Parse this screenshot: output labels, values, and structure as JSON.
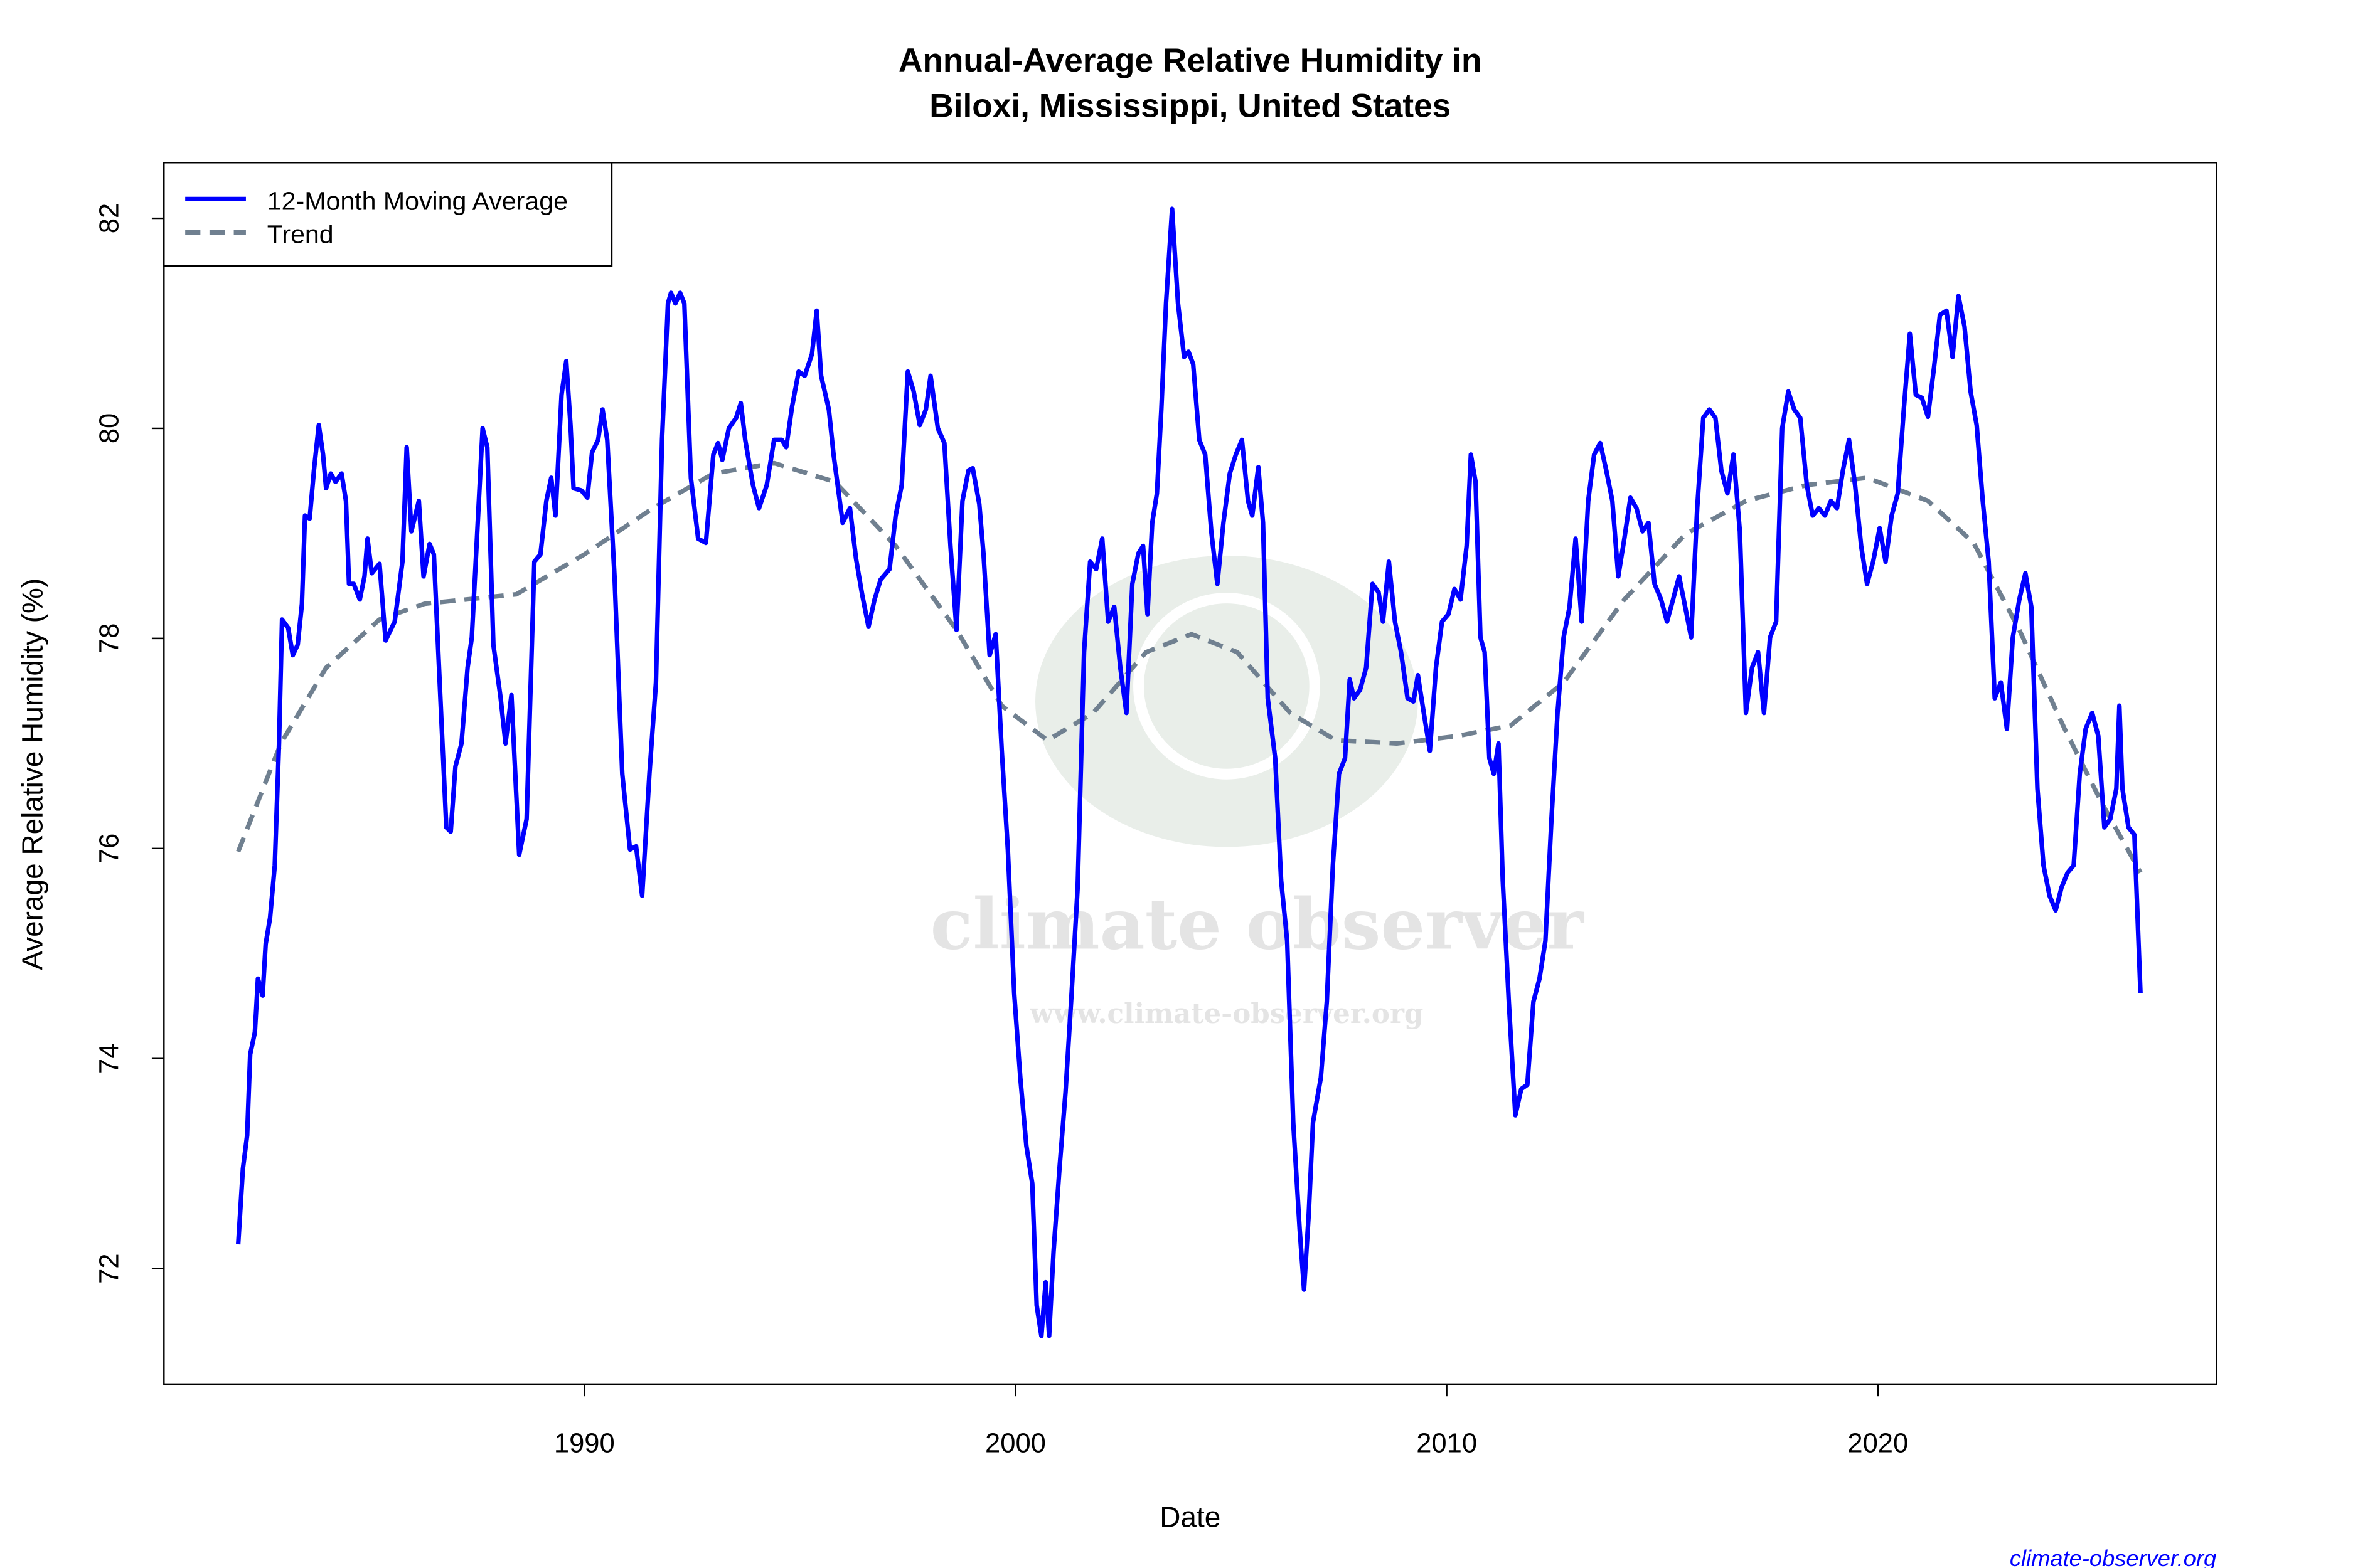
{
  "chart_data": {
    "type": "line",
    "title": "Annual-Average Relative Humidity in\nBiloxi, Mississippi, United States",
    "title_lines": [
      "Annual-Average Relative Humidity in",
      "Biloxi, Mississippi, United States"
    ],
    "xlabel": "Date",
    "ylabel": "Average Relative Humidity (%)",
    "xlim": [
      1980.25,
      2027.85
    ],
    "ylim": [
      70.9,
      82.53
    ],
    "xticks": [
      1990,
      2000,
      2010,
      2020
    ],
    "xtick_labels": [
      "1990",
      "2000",
      "2010",
      "2020"
    ],
    "yticks": [
      72,
      74,
      76,
      78,
      80,
      82
    ],
    "ytick_labels": [
      "72",
      "74",
      "76",
      "78",
      "80",
      "82"
    ],
    "grid": false,
    "legend_position": "top-left",
    "series": [
      {
        "name": "12-Month Moving Average",
        "color": "#0000ff",
        "style": "solid",
        "x": [
          1981.97,
          1982.08,
          1982.18,
          1982.25,
          1982.36,
          1982.43,
          1982.54,
          1982.61,
          1982.71,
          1982.82,
          1982.92,
          1982.99,
          1983.13,
          1983.24,
          1983.35,
          1983.45,
          1983.52,
          1983.63,
          1983.73,
          1983.84,
          1983.94,
          1984.01,
          1984.12,
          1984.23,
          1984.37,
          1984.47,
          1984.54,
          1984.65,
          1984.79,
          1984.9,
          1984.97,
          1985.07,
          1985.25,
          1985.39,
          1985.6,
          1985.78,
          1985.88,
          1985.99,
          1986.16,
          1986.27,
          1986.41,
          1986.51,
          1986.66,
          1986.8,
          1986.9,
          1987.01,
          1987.15,
          1987.29,
          1987.39,
          1987.64,
          1987.75,
          1987.89,
          1988.06,
          1988.17,
          1988.31,
          1988.49,
          1988.66,
          1988.84,
          1988.98,
          1989.12,
          1989.23,
          1989.33,
          1989.47,
          1989.58,
          1989.68,
          1989.75,
          1989.93,
          1990.07,
          1990.18,
          1990.32,
          1990.42,
          1990.53,
          1990.7,
          1990.88,
          1991.06,
          1991.2,
          1991.34,
          1991.51,
          1991.66,
          1991.8,
          1991.94,
          1992.01,
          1992.11,
          1992.22,
          1992.32,
          1992.47,
          1992.64,
          1992.82,
          1992.99,
          1993.1,
          1993.2,
          1993.35,
          1993.52,
          1993.63,
          1993.73,
          1993.91,
          1994.05,
          1994.23,
          1994.4,
          1994.58,
          1994.68,
          1994.82,
          1994.97,
          1995.11,
          1995.28,
          1995.39,
          1995.49,
          1995.67,
          1995.78,
          1995.99,
          1996.16,
          1996.3,
          1996.44,
          1996.59,
          1996.73,
          1996.87,
          1997.08,
          1997.22,
          1997.36,
          1997.5,
          1997.64,
          1997.78,
          1997.92,
          1998.03,
          1998.2,
          1998.35,
          1998.49,
          1998.63,
          1998.77,
          1998.91,
          1999.01,
          1999.16,
          1999.26,
          1999.4,
          1999.54,
          1999.68,
          1999.82,
          1999.97,
          2000.11,
          2000.25,
          2000.39,
          2000.49,
          2000.6,
          2000.7,
          2000.78,
          2000.88,
          2001.02,
          2001.16,
          2001.3,
          2001.44,
          2001.59,
          2001.73,
          2001.87,
          2002.01,
          2002.15,
          2002.29,
          2002.43,
          2002.57,
          2002.71,
          2002.85,
          2002.96,
          2003.06,
          2003.17,
          2003.28,
          2003.38,
          2003.49,
          2003.63,
          2003.77,
          2003.91,
          2004.01,
          2004.12,
          2004.26,
          2004.4,
          2004.54,
          2004.68,
          2004.82,
          2004.97,
          2005.11,
          2005.25,
          2005.39,
          2005.49,
          2005.63,
          2005.74,
          2005.85,
          2006.02,
          2006.16,
          2006.3,
          2006.44,
          2006.59,
          2006.69,
          2006.8,
          2006.9,
          2007.08,
          2007.22,
          2007.36,
          2007.5,
          2007.64,
          2007.75,
          2007.85,
          2007.99,
          2008.13,
          2008.28,
          2008.42,
          2008.52,
          2008.66,
          2008.8,
          2008.94,
          2009.09,
          2009.23,
          2009.33,
          2009.47,
          2009.61,
          2009.75,
          2009.89,
          2010.04,
          2010.18,
          2010.32,
          2010.46,
          2010.56,
          2010.67,
          2010.78,
          2010.88,
          2010.99,
          2011.09,
          2011.2,
          2011.3,
          2011.44,
          2011.59,
          2011.73,
          2011.87,
          2012.01,
          2012.15,
          2012.29,
          2012.43,
          2012.57,
          2012.71,
          2012.85,
          2012.99,
          2013.13,
          2013.28,
          2013.42,
          2013.56,
          2013.7,
          2013.84,
          2013.98,
          2014.12,
          2014.26,
          2014.4,
          2014.54,
          2014.68,
          2014.82,
          2014.97,
          2015.11,
          2015.25,
          2015.39,
          2015.53,
          2015.67,
          2015.81,
          2015.95,
          2016.09,
          2016.23,
          2016.37,
          2016.51,
          2016.65,
          2016.8,
          2016.94,
          2017.08,
          2017.22,
          2017.36,
          2017.5,
          2017.64,
          2017.78,
          2017.92,
          2018.06,
          2018.2,
          2018.35,
          2018.49,
          2018.63,
          2018.77,
          2018.91,
          2019.05,
          2019.19,
          2019.33,
          2019.47,
          2019.61,
          2019.75,
          2019.89,
          2020.04,
          2020.18,
          2020.32,
          2020.46,
          2020.6,
          2020.74,
          2020.88,
          2021.02,
          2021.16,
          2021.3,
          2021.44,
          2021.59,
          2021.73,
          2021.87,
          2022.01,
          2022.15,
          2022.29,
          2022.43,
          2022.57,
          2022.71,
          2022.85,
          2022.99,
          2023.13,
          2023.28,
          2023.42,
          2023.56,
          2023.7,
          2023.84,
          2023.98,
          2024.12,
          2024.26,
          2024.4,
          2024.54,
          2024.68,
          2024.82,
          2024.97,
          2025.11,
          2025.25,
          2025.39,
          2025.53,
          2025.6,
          2025.67,
          2025.81,
          2025.95,
          2026.09
        ],
        "y": [
          72.23,
          72.95,
          73.27,
          74.04,
          74.25,
          74.76,
          74.6,
          75.09,
          75.34,
          75.84,
          77.0,
          78.18,
          78.1,
          77.84,
          77.94,
          78.33,
          79.17,
          79.14,
          79.6,
          80.03,
          79.75,
          79.43,
          79.57,
          79.49,
          79.57,
          79.31,
          78.52,
          78.52,
          78.37,
          78.59,
          78.95,
          78.62,
          78.71,
          77.98,
          78.16,
          78.73,
          79.82,
          79.02,
          79.31,
          78.59,
          78.9,
          78.8,
          77.43,
          76.2,
          76.16,
          76.78,
          77.0,
          77.72,
          78.01,
          80.0,
          79.82,
          77.94,
          77.43,
          77.0,
          77.46,
          75.94,
          76.28,
          78.73,
          78.8,
          79.31,
          79.53,
          79.17,
          80.32,
          80.64,
          80.03,
          79.43,
          79.41,
          79.34,
          79.77,
          79.89,
          80.18,
          79.89,
          78.59,
          76.71,
          75.99,
          76.02,
          75.55,
          76.71,
          77.58,
          79.89,
          81.19,
          81.29,
          81.19,
          81.29,
          81.19,
          79.53,
          78.95,
          78.91,
          79.75,
          79.86,
          79.7,
          80.0,
          80.1,
          80.24,
          79.89,
          79.46,
          79.24,
          79.46,
          79.89,
          79.89,
          79.82,
          80.21,
          80.54,
          80.5,
          80.71,
          81.12,
          80.5,
          80.18,
          79.75,
          79.1,
          79.24,
          78.76,
          78.42,
          78.11,
          78.37,
          78.56,
          78.66,
          79.17,
          79.46,
          80.54,
          80.35,
          80.03,
          80.18,
          80.5,
          80.0,
          79.86,
          78.88,
          78.08,
          79.31,
          79.6,
          79.62,
          79.28,
          78.8,
          77.84,
          78.04,
          76.93,
          75.99,
          74.62,
          73.82,
          73.17,
          72.81,
          71.65,
          71.36,
          71.87,
          71.36,
          72.16,
          72.95,
          73.68,
          74.62,
          75.63,
          77.87,
          78.73,
          78.66,
          78.95,
          78.16,
          78.3,
          77.72,
          77.29,
          78.52,
          78.81,
          78.88,
          78.23,
          79.1,
          79.38,
          80.18,
          81.19,
          82.09,
          81.19,
          80.68,
          80.73,
          80.61,
          79.89,
          79.75,
          79.02,
          78.52,
          79.1,
          79.57,
          79.75,
          79.89,
          79.31,
          79.17,
          79.63,
          79.1,
          77.43,
          76.86,
          75.7,
          75.12,
          73.39,
          72.38,
          71.8,
          72.52,
          73.39,
          73.82,
          74.54,
          75.84,
          76.71,
          76.86,
          77.61,
          77.43,
          77.51,
          77.72,
          78.52,
          78.44,
          78.16,
          78.73,
          78.16,
          77.87,
          77.43,
          77.4,
          77.65,
          77.29,
          76.93,
          77.72,
          78.16,
          78.23,
          78.47,
          78.37,
          78.88,
          79.75,
          79.49,
          78.01,
          77.87,
          76.86,
          76.71,
          77.0,
          75.7,
          74.54,
          73.46,
          73.71,
          73.75,
          74.54,
          74.76,
          75.12,
          76.28,
          77.29,
          78.01,
          78.3,
          78.95,
          78.16,
          79.31,
          79.75,
          79.86,
          79.6,
          79.31,
          78.59,
          78.95,
          79.34,
          79.24,
          79.02,
          79.1,
          78.52,
          78.37,
          78.16,
          78.37,
          78.59,
          78.3,
          78.01,
          79.24,
          80.1,
          80.18,
          80.1,
          79.6,
          79.38,
          79.75,
          79.02,
          77.29,
          77.72,
          77.87,
          77.29,
          78.01,
          78.16,
          80.0,
          80.35,
          80.18,
          80.1,
          79.46,
          79.17,
          79.24,
          79.17,
          79.31,
          79.24,
          79.6,
          79.89,
          79.46,
          78.88,
          78.52,
          78.73,
          79.05,
          78.73,
          79.17,
          79.38,
          80.18,
          80.9,
          80.32,
          80.29,
          80.11,
          80.58,
          81.08,
          81.12,
          80.68,
          81.26,
          80.97,
          80.35,
          80.03,
          79.31,
          78.73,
          77.43,
          77.58,
          77.14,
          78.01,
          78.37,
          78.62,
          78.3,
          76.57,
          75.84,
          75.55,
          75.41,
          75.63,
          75.77,
          75.84,
          76.71,
          77.14,
          77.29,
          77.07,
          76.2,
          76.28,
          76.57,
          77.36,
          76.57,
          76.2,
          76.13,
          74.62
        ]
      },
      {
        "name": "Trend",
        "color": "#708090",
        "style": "dashed",
        "x": [
          1981.97,
          1982.96,
          1984.01,
          1985.25,
          1986.3,
          1988.42,
          1990.0,
          1991.59,
          1992.99,
          1994.4,
          1995.81,
          1997.22,
          1998.63,
          1999.68,
          2000.74,
          2001.8,
          2003.03,
          2004.08,
          2005.14,
          2006.37,
          2007.43,
          2008.84,
          2010.25,
          2011.48,
          2012.71,
          2014.12,
          2015.53,
          2016.94,
          2018.35,
          2019.75,
          2021.16,
          2022.22,
          2023.28,
          2024.33,
          2025.21,
          2026.09
        ],
        "y": [
          75.97,
          77.0,
          77.72,
          78.18,
          78.33,
          78.42,
          78.8,
          79.24,
          79.57,
          79.67,
          79.49,
          78.88,
          78.08,
          77.36,
          77.03,
          77.29,
          77.87,
          78.04,
          77.87,
          77.29,
          77.03,
          77.0,
          77.07,
          77.17,
          77.58,
          78.37,
          78.99,
          79.31,
          79.46,
          79.53,
          79.31,
          78.91,
          78.08,
          77.14,
          76.42,
          75.77
        ]
      }
    ]
  },
  "watermark": {
    "name": "climate observer",
    "url": "www.climate-observer.org"
  },
  "credit": "climate-observer.org"
}
